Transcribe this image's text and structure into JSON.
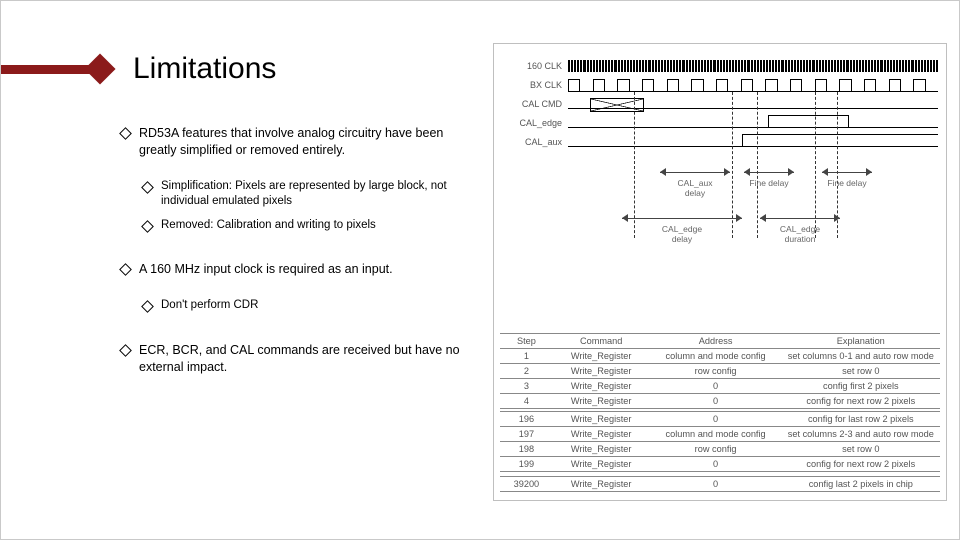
{
  "title": "Limitations",
  "bullets": {
    "b1": "RD53A features that involve analog circuitry have been greatly simplified or removed entirely.",
    "b1a": "Simplification: Pixels are represented by large block, not individual emulated pixels",
    "b1b": "Removed: Calibration and writing to pixels",
    "b2": "A 160 MHz input clock is required as an input.",
    "b2a": "Don't perform CDR",
    "b3": "ECR, BCR, and CAL commands are received but have no external impact."
  },
  "timing": {
    "labels": {
      "clk160": "160 CLK",
      "bxclk": "BX CLK",
      "calcmd": "CAL CMD",
      "caledge": "CAL_edge",
      "calaux": "CAL_aux"
    },
    "annotations": {
      "aux_delay": "CAL_aux\ndelay",
      "fine1": "Fine delay",
      "fine2": "Fine delay",
      "edge_delay": "CAL_edge\ndelay",
      "edge_dur": "CAL_edge\nduration"
    },
    "clk160_bars": 120,
    "bx_cycles": 15,
    "vlines_pct": [
      20,
      47,
      54,
      70,
      76
    ]
  },
  "table": {
    "headers": [
      "Step",
      "Command",
      "Address",
      "Explanation"
    ],
    "col_widths": [
      "12%",
      "22%",
      "30%",
      "36%"
    ],
    "rows": [
      [
        "1",
        "Write_Register",
        "column and mode config",
        "set columns 0-1 and auto row mode"
      ],
      [
        "2",
        "Write_Register",
        "row config",
        "set row 0"
      ],
      [
        "3",
        "Write_Register",
        "0",
        "config first 2 pixels"
      ],
      [
        "4",
        "Write_Register",
        "0",
        "config for next row 2 pixels"
      ],
      [
        "196",
        "Write_Register",
        "0",
        "config for last row 2 pixels"
      ],
      [
        "197",
        "Write_Register",
        "column and mode config",
        "set columns 2-3 and auto row mode"
      ],
      [
        "198",
        "Write_Register",
        "row config",
        "set row 0"
      ],
      [
        "199",
        "Write_Register",
        "0",
        "config for next row 2 pixels"
      ],
      [
        "39200",
        "Write_Register",
        "0",
        "config last 2 pixels in chip"
      ]
    ],
    "split_after_row": 3,
    "last_gap_after_row": 7
  },
  "colors": {
    "accent": "#8b1a1a",
    "border": "#bfbfbf",
    "text_muted": "#555555"
  }
}
